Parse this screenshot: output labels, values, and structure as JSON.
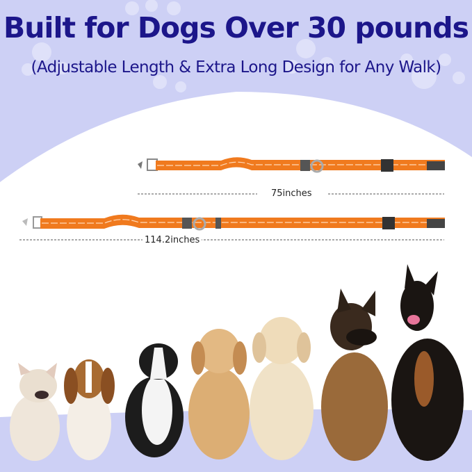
{
  "headline": "Built for Dogs Over 30 pounds",
  "subheadline": "(Adjustable Length & Extra Long Design for Any Walk)",
  "leashes": [
    {
      "length_label": "75inches"
    },
    {
      "length_label": "114.2inches"
    }
  ],
  "colors": {
    "background": "#cdd0f5",
    "headline": "#1c168a",
    "leash": "#f07a1e",
    "reflective_stripe": "#ffd9b8"
  },
  "dogs": [
    "french-bulldog",
    "beagle",
    "border-collie",
    "golden-retriever",
    "labrador",
    "german-shepherd",
    "doberman"
  ]
}
